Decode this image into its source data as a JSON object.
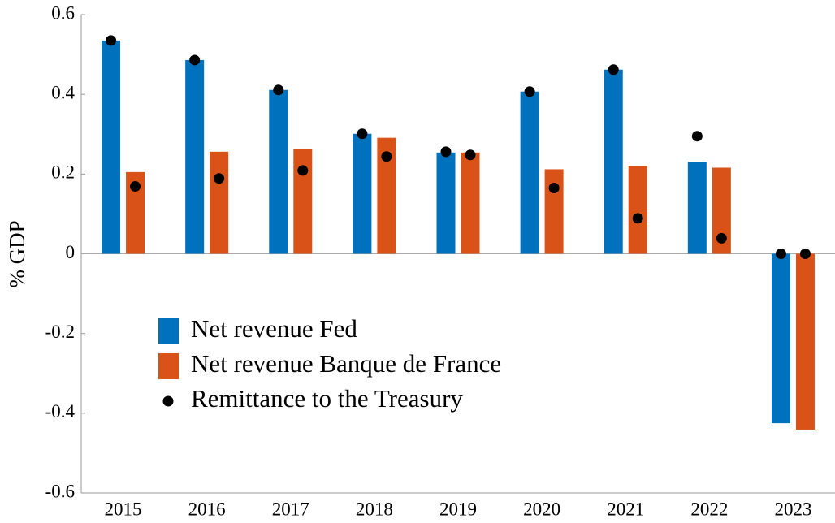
{
  "chart_data": {
    "type": "bar",
    "ylabel": "% GDP",
    "categories": [
      "2015",
      "2016",
      "2017",
      "2018",
      "2019",
      "2020",
      "2021",
      "2022",
      "2023"
    ],
    "series": [
      {
        "name": "Net revenue Fed",
        "color": "#0072bd",
        "values": [
          0.535,
          0.486,
          0.411,
          0.301,
          0.254,
          0.407,
          0.462,
          0.23,
          -0.425
        ],
        "remittance": [
          0.535,
          0.486,
          0.411,
          0.301,
          0.256,
          0.407,
          0.462,
          0.295,
          0
        ]
      },
      {
        "name": "Net revenue Banque de France",
        "color": "#d95319",
        "values": [
          0.205,
          0.256,
          0.262,
          0.291,
          0.254,
          0.212,
          0.22,
          0.216,
          -0.441
        ],
        "remittance": [
          0.169,
          0.189,
          0.209,
          0.244,
          0.248,
          0.165,
          0.089,
          0.039,
          0
        ]
      }
    ],
    "remittance_name": "Remittance to the Treasury",
    "remittance_color": "#000000",
    "ylim": [
      -0.6,
      0.6
    ],
    "yticks": [
      -0.6,
      -0.4,
      -0.2,
      0,
      0.2,
      0.4,
      0.6
    ]
  }
}
